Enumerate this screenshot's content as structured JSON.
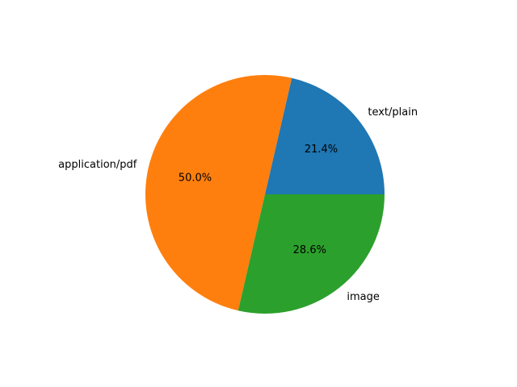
{
  "chart_data": {
    "type": "pie",
    "categories": [
      "text/plain",
      "application/pdf",
      "image"
    ],
    "values": [
      21.4,
      50.0,
      28.6
    ],
    "percent_labels": [
      "21.4%",
      "50.0%",
      "28.6%"
    ],
    "colors": [
      "#1f77b4",
      "#ff7f0e",
      "#2ca02c"
    ],
    "title": "",
    "start_angle_deg": 0,
    "direction": "counterclockwise",
    "legend": "none"
  }
}
